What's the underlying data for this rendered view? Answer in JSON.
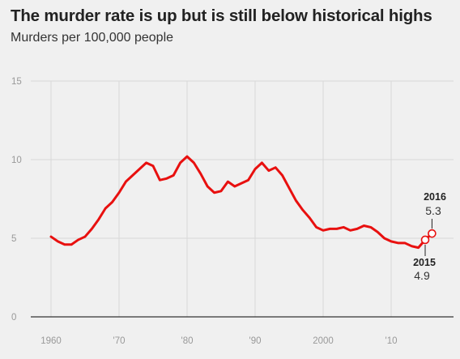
{
  "title": "The murder rate is up but is still below historical highs",
  "subtitle": "Murders per 100,000 people",
  "colors": {
    "line": "#e8100f",
    "background": "#f0f0f0",
    "grid": "#d8d8d8",
    "baseline": "#333333",
    "tick_text": "#999999"
  },
  "chart_data": {
    "type": "line",
    "title": "The murder rate is up but is still below historical highs",
    "subtitle": "Murders per 100,000 people",
    "xlabel": "",
    "ylabel": "",
    "xlim": [
      1957,
      2017
    ],
    "ylim": [
      0,
      15
    ],
    "grid": true,
    "x_ticks": [
      1960,
      1970,
      1980,
      1990,
      2000,
      2010
    ],
    "x_tick_labels": [
      "1960",
      "'70",
      "'80",
      "'90",
      "2000",
      "'10"
    ],
    "y_ticks": [
      0,
      5,
      10,
      15
    ],
    "y_tick_labels": [
      "0",
      "5",
      "10",
      "15"
    ],
    "x": [
      1960,
      1961,
      1962,
      1963,
      1964,
      1965,
      1966,
      1967,
      1968,
      1969,
      1970,
      1971,
      1972,
      1973,
      1974,
      1975,
      1976,
      1977,
      1978,
      1979,
      1980,
      1981,
      1982,
      1983,
      1984,
      1985,
      1986,
      1987,
      1988,
      1989,
      1990,
      1991,
      1992,
      1993,
      1994,
      1995,
      1996,
      1997,
      1998,
      1999,
      2000,
      2001,
      2002,
      2003,
      2004,
      2005,
      2006,
      2007,
      2008,
      2009,
      2010,
      2011,
      2012,
      2013,
      2014,
      2015,
      2016
    ],
    "series": [
      {
        "values": [
          5.1,
          4.8,
          4.6,
          4.6,
          4.9,
          5.1,
          5.6,
          6.2,
          6.9,
          7.3,
          7.9,
          8.6,
          9.0,
          9.4,
          9.8,
          9.6,
          8.7,
          8.8,
          9.0,
          9.8,
          10.2,
          9.8,
          9.1,
          8.3,
          7.9,
          8.0,
          8.6,
          8.3,
          8.5,
          8.7,
          9.4,
          9.8,
          9.3,
          9.5,
          9.0,
          8.2,
          7.4,
          6.8,
          6.3,
          5.7,
          5.5,
          5.6,
          5.6,
          5.7,
          5.5,
          5.6,
          5.8,
          5.7,
          5.4,
          5.0,
          4.8,
          4.7,
          4.7,
          4.5,
          4.4,
          4.9,
          5.3
        ]
      }
    ],
    "annotations": [
      {
        "year": "2016",
        "value": "5.3",
        "x": 2016,
        "y": 5.3
      },
      {
        "year": "2015",
        "value": "4.9",
        "x": 2015,
        "y": 4.9
      }
    ]
  }
}
